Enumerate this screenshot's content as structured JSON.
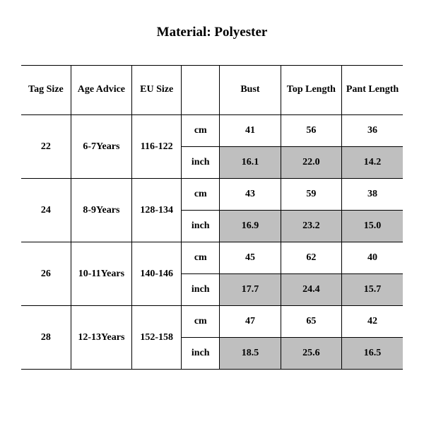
{
  "title": "Material: Polyester",
  "colors": {
    "background": "#ffffff",
    "text": "#000000",
    "border": "#000000",
    "shaded": "#bfbfbf"
  },
  "typography": {
    "title_fontsize_pt": 14,
    "cell_fontsize_pt": 10,
    "font_weight": "bold",
    "font_family": "Times New Roman"
  },
  "table": {
    "type": "table",
    "columns": [
      "Tag Size",
      "Age Advice",
      "EU Size",
      "",
      "Bust",
      "Top Length",
      "Pant Length"
    ],
    "column_widths_pct": [
      13,
      16,
      13,
      10,
      16,
      16,
      16
    ],
    "units": [
      "cm",
      "inch"
    ],
    "inch_row_shaded": true,
    "rows": [
      {
        "tag_size": "22",
        "age_advice": "6-7Years",
        "eu_size": "116-122",
        "cm": {
          "bust": "41",
          "top_length": "56",
          "pant_length": "36"
        },
        "inch": {
          "bust": "16.1",
          "top_length": "22.0",
          "pant_length": "14.2"
        }
      },
      {
        "tag_size": "24",
        "age_advice": "8-9Years",
        "eu_size": "128-134",
        "cm": {
          "bust": "43",
          "top_length": "59",
          "pant_length": "38"
        },
        "inch": {
          "bust": "16.9",
          "top_length": "23.2",
          "pant_length": "15.0"
        }
      },
      {
        "tag_size": "26",
        "age_advice": "10-11Years",
        "eu_size": "140-146",
        "cm": {
          "bust": "45",
          "top_length": "62",
          "pant_length": "40"
        },
        "inch": {
          "bust": "17.7",
          "top_length": "24.4",
          "pant_length": "15.7"
        }
      },
      {
        "tag_size": "28",
        "age_advice": "12-13Years",
        "eu_size": "152-158",
        "cm": {
          "bust": "47",
          "top_length": "65",
          "pant_length": "42"
        },
        "inch": {
          "bust": "18.5",
          "top_length": "25.6",
          "pant_length": "16.5"
        }
      }
    ]
  }
}
